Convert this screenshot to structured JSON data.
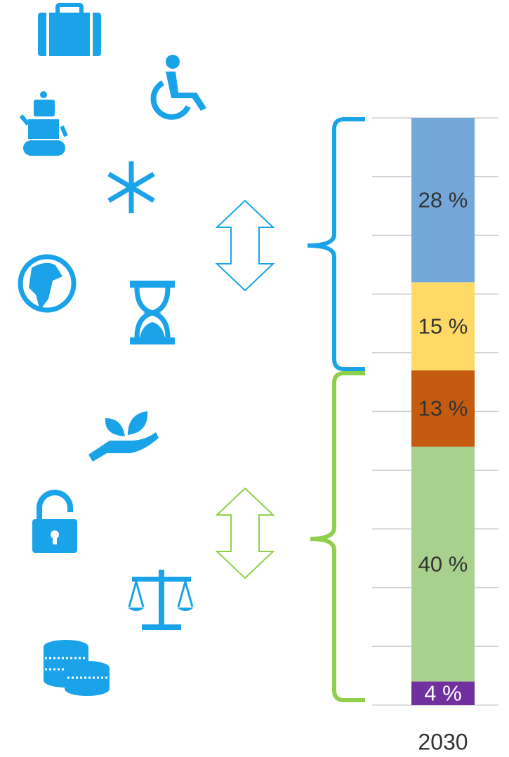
{
  "chart_data": {
    "type": "stacked_bar",
    "categories": [
      "2030"
    ],
    "series": [
      {
        "color": "#7030a0",
        "label_color": "#ffffff",
        "values": [
          4
        ],
        "value_labels": [
          "4 %"
        ]
      },
      {
        "color": "#a9d18e",
        "label_color": "#333333",
        "values": [
          40
        ],
        "value_labels": [
          "40 %"
        ]
      },
      {
        "color": "#c55a11",
        "label_color": "#333333",
        "values": [
          13
        ],
        "value_labels": [
          "13 %"
        ]
      },
      {
        "color": "#ffd966",
        "label_color": "#333333",
        "values": [
          15
        ],
        "value_labels": [
          "15 %"
        ]
      },
      {
        "color": "#74a8da",
        "label_color": "#333333",
        "values": [
          28
        ],
        "value_labels": [
          "28 %"
        ]
      }
    ],
    "ylim": [
      0,
      100
    ],
    "yticks": [
      0,
      10,
      20,
      30,
      40,
      50,
      60,
      70,
      80,
      90,
      100
    ],
    "grid": true
  }
}
